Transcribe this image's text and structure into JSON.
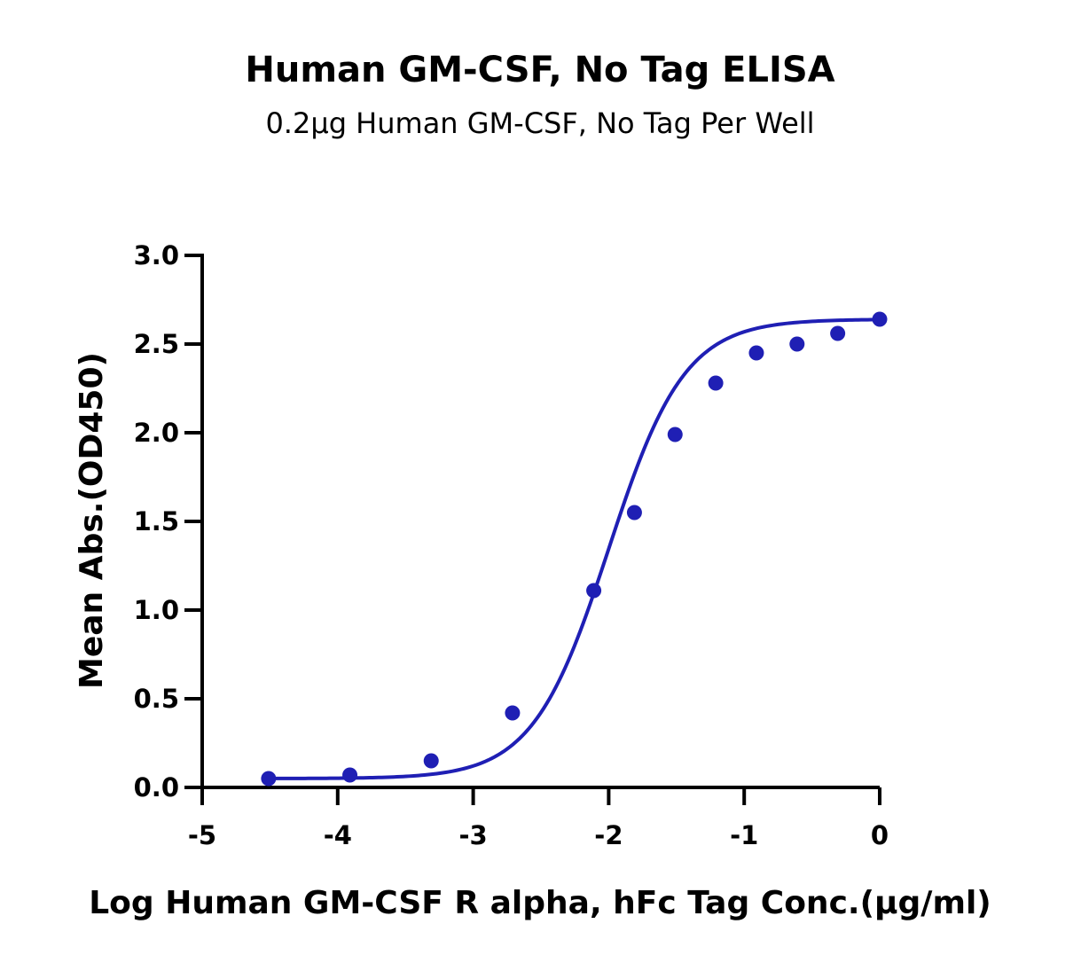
{
  "chart_data": {
    "type": "scatter",
    "title": "Human GM-CSF, No Tag ELISA",
    "subtitle": "0.2μg Human GM-CSF, No Tag Per Well",
    "xlabel": "Log Human GM-CSF R alpha, hFc Tag Conc.(μg/ml)",
    "ylabel": "Mean Abs.(OD450)",
    "xlim": [
      -5,
      0
    ],
    "ylim": [
      0,
      3
    ],
    "x_ticks": [
      "-5",
      "-4",
      "-3",
      "-2",
      "-1",
      "0"
    ],
    "y_ticks": [
      "0.0",
      "0.5",
      "1.0",
      "1.5",
      "2.0",
      "2.5",
      "3.0"
    ],
    "grid": false,
    "color": "#1f1fb4",
    "series": [
      {
        "x": [
          -4.51,
          -3.91,
          -3.31,
          -2.71,
          -2.11,
          -1.81,
          -1.51,
          -1.21,
          -0.91,
          -0.61,
          -0.31,
          0.0
        ],
        "y": [
          0.05,
          0.07,
          0.15,
          0.42,
          1.11,
          1.55,
          1.99,
          2.28,
          2.45,
          2.5,
          2.56,
          2.64
        ]
      }
    ],
    "fit": {
      "model": "4PL",
      "bottom": 0.05,
      "top": 2.64,
      "log_ec50": -2.0,
      "hill": 1.55
    }
  }
}
